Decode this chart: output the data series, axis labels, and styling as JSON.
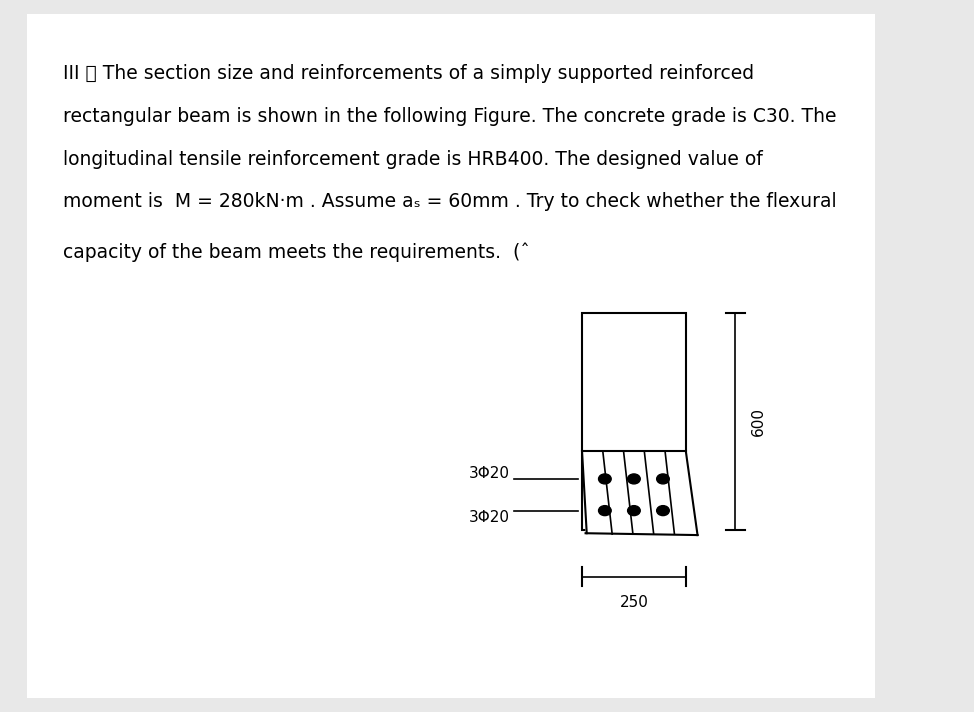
{
  "bg_color": "#e8e8e8",
  "page_bg": "#ffffff",
  "text_color": "#000000",
  "paragraph_lines": [
    "III 、 The section size and reinforcements of a simply supported reinforced",
    "rectangular beam is shown in the following Figure. The concrete grade is C30. The",
    "longitudinal tensile reinforcement grade is HRB400. The designed value of",
    "moment is  M = 280kN·m . Assume aₛ = 60mm . Try to check whether the flexural",
    "capacity of the beam meets the requirements.  (ˆ"
  ],
  "label_3phi20_top": "3Φ20",
  "label_3phi20_bot": "3Φ20",
  "label_250": "250",
  "label_600": "600",
  "font_size_text": 13.5,
  "font_size_label": 11
}
